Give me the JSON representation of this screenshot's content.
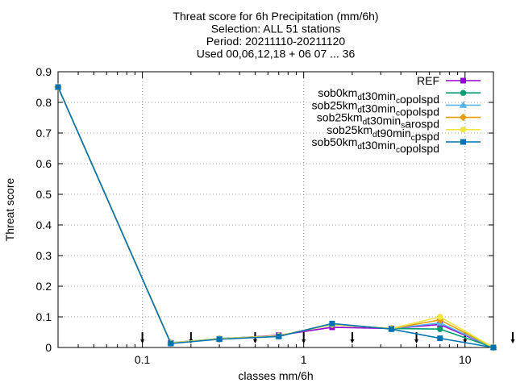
{
  "chart_data": {
    "type": "line",
    "title_lines": [
      "Threat score  for 6h Precipitation (mm/6h)",
      "Selection: ALL     51 stations",
      "Period: 20211110-20211120",
      "Used 00,06,12,18 + 06 07 ... 36"
    ],
    "xlabel": "classes mm/6h",
    "ylabel": "Threat score",
    "x_scale": "log",
    "xlim": [
      0.03,
      15
    ],
    "ylim": [
      0,
      0.9
    ],
    "x_ticks": [
      {
        "value": 0.1,
        "label": "0.1"
      },
      {
        "value": 1,
        "label": "1"
      },
      {
        "value": 10,
        "label": "10"
      }
    ],
    "y_ticks": [
      {
        "value": 0,
        "label": "0"
      },
      {
        "value": 0.1,
        "label": "0.1"
      },
      {
        "value": 0.2,
        "label": "0.2"
      },
      {
        "value": 0.3,
        "label": "0.3"
      },
      {
        "value": 0.4,
        "label": "0.4"
      },
      {
        "value": 0.5,
        "label": "0.5"
      },
      {
        "value": 0.6,
        "label": "0.6"
      },
      {
        "value": 0.7,
        "label": "0.7"
      },
      {
        "value": 0.8,
        "label": "0.8"
      },
      {
        "value": 0.9,
        "label": "0.9"
      }
    ],
    "grid": true,
    "legend_position": "top-right",
    "x": [
      0.03,
      0.15,
      0.3,
      0.7,
      1.5,
      3.5,
      7,
      15
    ],
    "series": [
      {
        "name": "REF",
        "color": "#9400d3",
        "marker": "square",
        "values": [
          0.85,
          0.015,
          0.028,
          0.04,
          0.066,
          0.062,
          0.075,
          0.0
        ]
      },
      {
        "name": "sob0km_d t30min_c opolspd",
        "name_parts": [
          {
            "t": "sob0km"
          },
          {
            "t": "d",
            "sub": true
          },
          {
            "t": "t30min"
          },
          {
            "t": "c",
            "sub": true
          },
          {
            "t": "opolspd"
          }
        ],
        "color": "#009e73",
        "marker": "circle",
        "values": [
          0.85,
          0.015,
          0.029,
          0.038,
          0.075,
          0.062,
          0.06,
          0.0
        ]
      },
      {
        "name": "sob25km_d t30min_c opolspd",
        "name_parts": [
          {
            "t": "sob25km"
          },
          {
            "t": "d",
            "sub": true
          },
          {
            "t": "t30min"
          },
          {
            "t": "c",
            "sub": true
          },
          {
            "t": "opolspd"
          }
        ],
        "color": "#56b4e9",
        "marker": "triangle",
        "values": [
          0.85,
          0.016,
          0.028,
          0.038,
          0.075,
          0.062,
          0.08,
          0.0
        ]
      },
      {
        "name": "sob25km_d t30min_s arospd",
        "name_parts": [
          {
            "t": "sob25km"
          },
          {
            "t": "d",
            "sub": true
          },
          {
            "t": "t30min"
          },
          {
            "t": "s",
            "sub": true
          },
          {
            "t": "arospd"
          }
        ],
        "color": "#e69f00",
        "marker": "diamond",
        "values": [
          0.85,
          0.015,
          0.028,
          0.038,
          0.075,
          0.062,
          0.09,
          0.0
        ]
      },
      {
        "name": "sob25km_d t90min_c pspd",
        "name_parts": [
          {
            "t": "sob25km"
          },
          {
            "t": "d",
            "sub": true
          },
          {
            "t": "t90min"
          },
          {
            "t": "c",
            "sub": true
          },
          {
            "t": "pspd"
          }
        ],
        "color": "#f0e442",
        "marker": "circle",
        "values": [
          0.85,
          0.015,
          0.028,
          0.038,
          0.075,
          0.062,
          0.1,
          0.0
        ]
      },
      {
        "name": "sob50km_d t30min_c opolspd",
        "name_parts": [
          {
            "t": "sob50km"
          },
          {
            "t": "d",
            "sub": true
          },
          {
            "t": "t30min"
          },
          {
            "t": "c",
            "sub": true
          },
          {
            "t": "opolspd"
          }
        ],
        "color": "#0072b2",
        "marker": "square",
        "values": [
          0.85,
          0.013,
          0.027,
          0.036,
          0.078,
          0.06,
          0.03,
          0.0
        ]
      }
    ],
    "sample_markers_x": [
      0.1,
      0.2,
      0.5,
      1,
      2,
      5,
      10,
      20
    ]
  }
}
